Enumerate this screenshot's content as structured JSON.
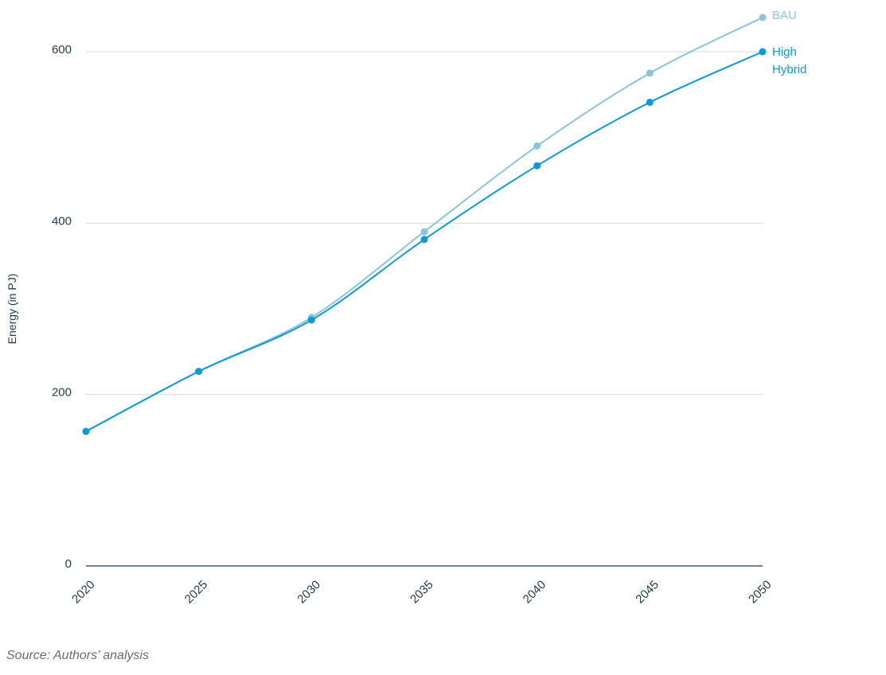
{
  "chart_data": {
    "type": "line",
    "x": [
      2020,
      2025,
      2030,
      2035,
      2040,
      2045,
      2050
    ],
    "ylabel": "Energy (in PJ)",
    "ylim": [
      0,
      600
    ],
    "yticks": [
      0,
      200,
      400,
      600
    ],
    "grid": true,
    "legend_position": "right, at line ends",
    "series": [
      {
        "name": "BAU",
        "color": "#8cc3de",
        "values": [
          157,
          227,
          290,
          390,
          490,
          575,
          640
        ]
      },
      {
        "name": "High Hybrid",
        "color": "#0a9bd4",
        "values": [
          157,
          227,
          287,
          381,
          467,
          541,
          600
        ]
      }
    ]
  },
  "source": "Source: Authors’ analysis"
}
